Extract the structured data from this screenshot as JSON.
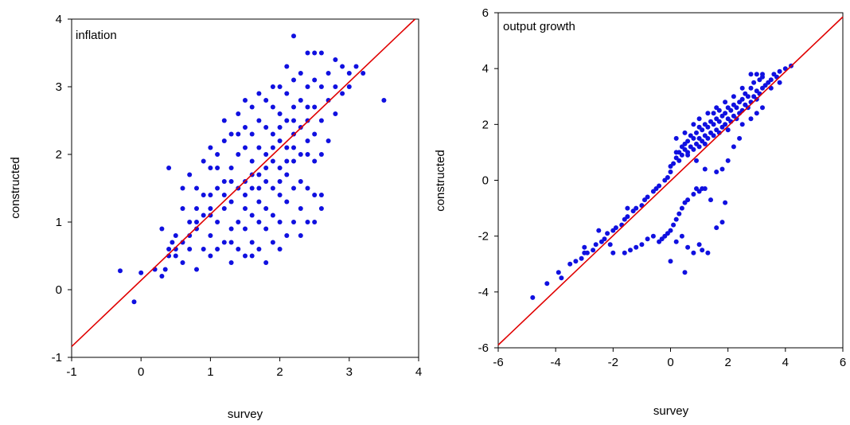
{
  "colors": {
    "points": "#1010e0",
    "fit_line": "#e00000",
    "axes": "#000000",
    "background": "#ffffff"
  },
  "chart_data": [
    {
      "type": "scatter",
      "title": "inflation",
      "xlabel": "survey",
      "ylabel": "constructed",
      "xlim": [
        -1,
        4
      ],
      "ylim": [
        -1,
        4
      ],
      "xticks": [
        -1,
        0,
        1,
        2,
        3,
        4
      ],
      "yticks": [
        -1,
        0,
        1,
        2,
        3,
        4
      ],
      "grid": false,
      "line": {
        "x": [
          -1,
          4
        ],
        "y": [
          -0.84,
          4.05
        ]
      },
      "points": [
        [
          -0.3,
          0.28
        ],
        [
          -0.1,
          -0.18
        ],
        [
          0.0,
          0.25
        ],
        [
          0.2,
          0.3
        ],
        [
          0.3,
          0.2
        ],
        [
          0.3,
          0.9
        ],
        [
          0.35,
          0.3
        ],
        [
          0.4,
          0.6
        ],
        [
          0.4,
          1.8
        ],
        [
          0.45,
          0.7
        ],
        [
          0.5,
          0.5
        ],
        [
          0.5,
          0.8
        ],
        [
          0.6,
          0.4
        ],
        [
          0.6,
          1.2
        ],
        [
          0.6,
          1.5
        ],
        [
          0.7,
          0.6
        ],
        [
          0.7,
          1.0
        ],
        [
          0.7,
          1.7
        ],
        [
          0.8,
          0.3
        ],
        [
          0.8,
          0.9
        ],
        [
          0.8,
          1.2
        ],
        [
          0.8,
          1.5
        ],
        [
          0.9,
          0.6
        ],
        [
          0.9,
          1.1
        ],
        [
          0.9,
          1.9
        ],
        [
          1.0,
          0.5
        ],
        [
          1.0,
          0.8
        ],
        [
          1.0,
          1.1
        ],
        [
          1.0,
          1.4
        ],
        [
          1.0,
          1.8
        ],
        [
          1.0,
          2.1
        ],
        [
          1.1,
          0.6
        ],
        [
          1.1,
          1.0
        ],
        [
          1.1,
          1.5
        ],
        [
          1.1,
          2.0
        ],
        [
          1.2,
          0.7
        ],
        [
          1.2,
          1.2
        ],
        [
          1.2,
          1.6
        ],
        [
          1.2,
          2.2
        ],
        [
          1.2,
          2.5
        ],
        [
          1.3,
          0.4
        ],
        [
          1.3,
          0.9
        ],
        [
          1.3,
          1.3
        ],
        [
          1.3,
          1.8
        ],
        [
          1.3,
          2.3
        ],
        [
          1.4,
          0.6
        ],
        [
          1.4,
          1.0
        ],
        [
          1.4,
          1.5
        ],
        [
          1.4,
          2.0
        ],
        [
          1.4,
          2.6
        ],
        [
          1.5,
          0.5
        ],
        [
          1.5,
          0.9
        ],
        [
          1.5,
          1.2
        ],
        [
          1.5,
          1.6
        ],
        [
          1.5,
          2.1
        ],
        [
          1.5,
          2.4
        ],
        [
          1.5,
          2.8
        ],
        [
          1.6,
          0.7
        ],
        [
          1.6,
          1.1
        ],
        [
          1.6,
          1.5
        ],
        [
          1.6,
          1.9
        ],
        [
          1.6,
          2.3
        ],
        [
          1.6,
          2.7
        ],
        [
          1.7,
          0.6
        ],
        [
          1.7,
          1.0
        ],
        [
          1.7,
          1.3
        ],
        [
          1.7,
          1.7
        ],
        [
          1.7,
          2.1
        ],
        [
          1.7,
          2.5
        ],
        [
          1.7,
          2.9
        ],
        [
          1.8,
          0.4
        ],
        [
          1.8,
          0.9
        ],
        [
          1.8,
          1.2
        ],
        [
          1.8,
          1.6
        ],
        [
          1.8,
          2.0
        ],
        [
          1.8,
          2.4
        ],
        [
          1.8,
          2.8
        ],
        [
          1.9,
          0.7
        ],
        [
          1.9,
          1.1
        ],
        [
          1.9,
          1.5
        ],
        [
          1.9,
          1.9
        ],
        [
          1.9,
          2.3
        ],
        [
          1.9,
          2.7
        ],
        [
          1.9,
          3.0
        ],
        [
          2.0,
          0.6
        ],
        [
          2.0,
          1.0
        ],
        [
          2.0,
          1.4
        ],
        [
          2.0,
          1.8
        ],
        [
          2.0,
          2.2
        ],
        [
          2.0,
          2.6
        ],
        [
          2.0,
          3.0
        ],
        [
          2.1,
          0.8
        ],
        [
          2.1,
          1.3
        ],
        [
          2.1,
          1.7
        ],
        [
          2.1,
          2.1
        ],
        [
          2.1,
          2.5
        ],
        [
          2.1,
          2.9
        ],
        [
          2.1,
          3.3
        ],
        [
          2.2,
          1.0
        ],
        [
          2.2,
          1.5
        ],
        [
          2.2,
          1.9
        ],
        [
          2.2,
          2.3
        ],
        [
          2.2,
          2.7
        ],
        [
          2.2,
          3.1
        ],
        [
          2.2,
          3.75
        ],
        [
          2.3,
          1.2
        ],
        [
          2.3,
          1.6
        ],
        [
          2.3,
          2.0
        ],
        [
          2.3,
          2.4
        ],
        [
          2.3,
          2.8
        ],
        [
          2.3,
          3.2
        ],
        [
          2.4,
          1.0
        ],
        [
          2.4,
          1.5
        ],
        [
          2.4,
          2.0
        ],
        [
          2.4,
          2.5
        ],
        [
          2.4,
          3.0
        ],
        [
          2.4,
          3.5
        ],
        [
          2.5,
          1.4
        ],
        [
          2.5,
          1.9
        ],
        [
          2.5,
          2.3
        ],
        [
          2.5,
          2.7
        ],
        [
          2.5,
          3.1
        ],
        [
          2.5,
          3.5
        ],
        [
          2.6,
          1.2
        ],
        [
          2.6,
          2.0
        ],
        [
          2.6,
          2.5
        ],
        [
          2.6,
          3.0
        ],
        [
          2.6,
          3.5
        ],
        [
          2.7,
          2.2
        ],
        [
          2.7,
          2.8
        ],
        [
          2.7,
          3.2
        ],
        [
          2.8,
          2.6
        ],
        [
          2.8,
          3.0
        ],
        [
          2.8,
          3.4
        ],
        [
          2.9,
          2.9
        ],
        [
          2.9,
          3.3
        ],
        [
          3.0,
          3.0
        ],
        [
          3.0,
          3.2
        ],
        [
          3.1,
          3.3
        ],
        [
          3.2,
          3.2
        ],
        [
          3.5,
          2.8
        ],
        [
          2.5,
          1.0
        ],
        [
          2.3,
          0.8
        ],
        [
          2.6,
          1.4
        ],
        [
          1.3,
          0.7
        ],
        [
          1.6,
          0.5
        ],
        [
          1.4,
          2.3
        ],
        [
          1.1,
          1.8
        ],
        [
          0.9,
          1.4
        ],
        [
          1.7,
          1.5
        ],
        [
          2.0,
          1.6
        ],
        [
          1.9,
          2.1
        ],
        [
          2.1,
          1.9
        ],
        [
          2.2,
          2.1
        ],
        [
          1.5,
          1.4
        ],
        [
          1.3,
          1.6
        ],
        [
          1.8,
          1.8
        ],
        [
          2.4,
          2.2
        ],
        [
          2.4,
          2.7
        ],
        [
          2.2,
          2.5
        ],
        [
          2.0,
          2.4
        ],
        [
          1.6,
          1.7
        ],
        [
          1.2,
          1.4
        ],
        [
          1.0,
          1.2
        ],
        [
          0.8,
          1.0
        ],
        [
          0.7,
          0.8
        ],
        [
          0.6,
          0.7
        ],
        [
          0.5,
          0.6
        ],
        [
          0.4,
          0.5
        ]
      ]
    },
    {
      "type": "scatter",
      "title": "output growth",
      "xlabel": "survey",
      "ylabel": "constructed",
      "xlim": [
        -6,
        6
      ],
      "ylim": [
        -6,
        6
      ],
      "xticks": [
        -6,
        -4,
        -2,
        0,
        2,
        4,
        6
      ],
      "yticks": [
        -6,
        -4,
        -2,
        0,
        2,
        4,
        6
      ],
      "grid": false,
      "line": {
        "x": [
          -6,
          6
        ],
        "y": [
          -5.9,
          5.85
        ]
      },
      "points": [
        [
          -4.8,
          -4.2
        ],
        [
          -4.3,
          -3.7
        ],
        [
          -3.9,
          -3.3
        ],
        [
          -3.8,
          -3.5
        ],
        [
          -3.5,
          -3.0
        ],
        [
          -3.1,
          -2.8
        ],
        [
          -3.0,
          -2.6
        ],
        [
          -2.9,
          -2.6
        ],
        [
          -2.7,
          -2.5
        ],
        [
          -2.6,
          -2.3
        ],
        [
          -2.4,
          -2.2
        ],
        [
          -2.3,
          -2.1
        ],
        [
          -2.2,
          -1.9
        ],
        [
          -2.0,
          -1.8
        ],
        [
          -1.9,
          -1.7
        ],
        [
          -1.7,
          -1.6
        ],
        [
          -1.6,
          -1.4
        ],
        [
          -1.5,
          -1.3
        ],
        [
          -1.3,
          -1.1
        ],
        [
          -1.2,
          -1.0
        ],
        [
          -1.0,
          -0.9
        ],
        [
          -0.9,
          -0.7
        ],
        [
          -0.8,
          -0.6
        ],
        [
          -0.6,
          -0.4
        ],
        [
          -0.5,
          -0.3
        ],
        [
          -0.4,
          -0.2
        ],
        [
          -0.2,
          0.0
        ],
        [
          -0.1,
          0.1
        ],
        [
          0.0,
          0.3
        ],
        [
          0.0,
          0.5
        ],
        [
          0.1,
          0.6
        ],
        [
          0.2,
          0.8
        ],
        [
          0.3,
          0.7
        ],
        [
          0.3,
          1.0
        ],
        [
          0.4,
          0.9
        ],
        [
          0.5,
          1.1
        ],
        [
          0.5,
          1.3
        ],
        [
          0.6,
          1.0
        ],
        [
          0.6,
          1.4
        ],
        [
          0.7,
          1.2
        ],
        [
          0.7,
          1.6
        ],
        [
          0.8,
          1.1
        ],
        [
          0.8,
          1.5
        ],
        [
          0.9,
          1.3
        ],
        [
          0.9,
          1.7
        ],
        [
          1.0,
          1.2
        ],
        [
          1.0,
          1.5
        ],
        [
          1.0,
          1.9
        ],
        [
          1.1,
          1.4
        ],
        [
          1.1,
          1.8
        ],
        [
          1.2,
          1.3
        ],
        [
          1.2,
          1.6
        ],
        [
          1.2,
          2.0
        ],
        [
          1.3,
          1.5
        ],
        [
          1.3,
          1.9
        ],
        [
          1.4,
          1.7
        ],
        [
          1.4,
          2.1
        ],
        [
          1.5,
          1.6
        ],
        [
          1.5,
          2.0
        ],
        [
          1.5,
          2.4
        ],
        [
          1.6,
          1.8
        ],
        [
          1.6,
          2.2
        ],
        [
          1.7,
          1.7
        ],
        [
          1.7,
          2.1
        ],
        [
          1.7,
          2.5
        ],
        [
          1.8,
          1.9
        ],
        [
          1.8,
          2.3
        ],
        [
          1.9,
          2.0
        ],
        [
          1.9,
          2.4
        ],
        [
          2.0,
          1.8
        ],
        [
          2.0,
          2.2
        ],
        [
          2.0,
          2.6
        ],
        [
          2.1,
          2.1
        ],
        [
          2.1,
          2.5
        ],
        [
          2.2,
          2.3
        ],
        [
          2.2,
          2.7
        ],
        [
          2.3,
          2.2
        ],
        [
          2.3,
          2.6
        ],
        [
          2.4,
          2.4
        ],
        [
          2.4,
          2.8
        ],
        [
          2.5,
          2.5
        ],
        [
          2.5,
          2.9
        ],
        [
          2.6,
          2.7
        ],
        [
          2.6,
          3.1
        ],
        [
          2.7,
          2.6
        ],
        [
          2.7,
          3.0
        ],
        [
          2.8,
          2.8
        ],
        [
          2.8,
          3.3
        ],
        [
          2.9,
          3.0
        ],
        [
          2.9,
          3.5
        ],
        [
          3.0,
          2.9
        ],
        [
          3.0,
          3.2
        ],
        [
          3.1,
          3.1
        ],
        [
          3.1,
          3.6
        ],
        [
          3.2,
          3.3
        ],
        [
          3.2,
          3.7
        ],
        [
          3.3,
          3.4
        ],
        [
          3.4,
          3.5
        ],
        [
          3.5,
          3.6
        ],
        [
          3.6,
          3.8
        ],
        [
          3.7,
          3.7
        ],
        [
          3.8,
          3.9
        ],
        [
          4.0,
          4.0
        ],
        [
          4.2,
          4.1
        ],
        [
          2.8,
          3.8
        ],
        [
          3.0,
          3.8
        ],
        [
          3.2,
          3.8
        ],
        [
          3.5,
          3.3
        ],
        [
          3.8,
          3.5
        ],
        [
          2.5,
          2.0
        ],
        [
          2.8,
          2.2
        ],
        [
          3.0,
          2.4
        ],
        [
          3.2,
          2.6
        ],
        [
          2.4,
          1.5
        ],
        [
          2.2,
          1.2
        ],
        [
          2.0,
          0.7
        ],
        [
          1.8,
          0.4
        ],
        [
          1.6,
          0.3
        ],
        [
          1.2,
          0.4
        ],
        [
          0.9,
          0.7
        ],
        [
          0.6,
          0.9
        ],
        [
          0.4,
          1.2
        ],
        [
          0.2,
          1.0
        ],
        [
          0.2,
          1.5
        ],
        [
          0.5,
          1.7
        ],
        [
          0.8,
          2.0
        ],
        [
          1.0,
          2.2
        ],
        [
          1.3,
          2.4
        ],
        [
          1.6,
          2.6
        ],
        [
          1.9,
          2.8
        ],
        [
          2.2,
          3.0
        ],
        [
          2.5,
          3.3
        ],
        [
          1.1,
          -0.3
        ],
        [
          1.0,
          -0.4
        ],
        [
          0.9,
          -0.3
        ],
        [
          0.8,
          -0.5
        ],
        [
          0.6,
          -0.7
        ],
        [
          0.5,
          -0.8
        ],
        [
          0.4,
          -1.0
        ],
        [
          0.3,
          -1.2
        ],
        [
          0.2,
          -1.4
        ],
        [
          0.1,
          -1.6
        ],
        [
          0.0,
          -1.8
        ],
        [
          -0.1,
          -1.9
        ],
        [
          -0.2,
          -2.0
        ],
        [
          -0.3,
          -2.1
        ],
        [
          -0.4,
          -2.2
        ],
        [
          -0.6,
          -2.0
        ],
        [
          -0.8,
          -2.1
        ],
        [
          -1.0,
          -2.3
        ],
        [
          -1.2,
          -2.4
        ],
        [
          -1.4,
          -2.5
        ],
        [
          -1.6,
          -2.6
        ],
        [
          0.2,
          -2.2
        ],
        [
          0.4,
          -2.0
        ],
        [
          0.6,
          -2.4
        ],
        [
          0.8,
          -2.6
        ],
        [
          0.5,
          -3.3
        ],
        [
          0.0,
          -2.9
        ],
        [
          1.0,
          -2.3
        ],
        [
          1.1,
          -2.5
        ],
        [
          1.3,
          -2.6
        ],
        [
          1.6,
          -1.7
        ],
        [
          1.8,
          -1.5
        ],
        [
          1.4,
          -0.7
        ],
        [
          1.2,
          -0.3
        ],
        [
          1.9,
          -0.8
        ],
        [
          -1.5,
          -1.0
        ],
        [
          -2.5,
          -1.8
        ],
        [
          -3.0,
          -2.4
        ],
        [
          -3.3,
          -2.9
        ],
        [
          -2.1,
          -2.3
        ],
        [
          -2.0,
          -2.6
        ]
      ]
    }
  ]
}
